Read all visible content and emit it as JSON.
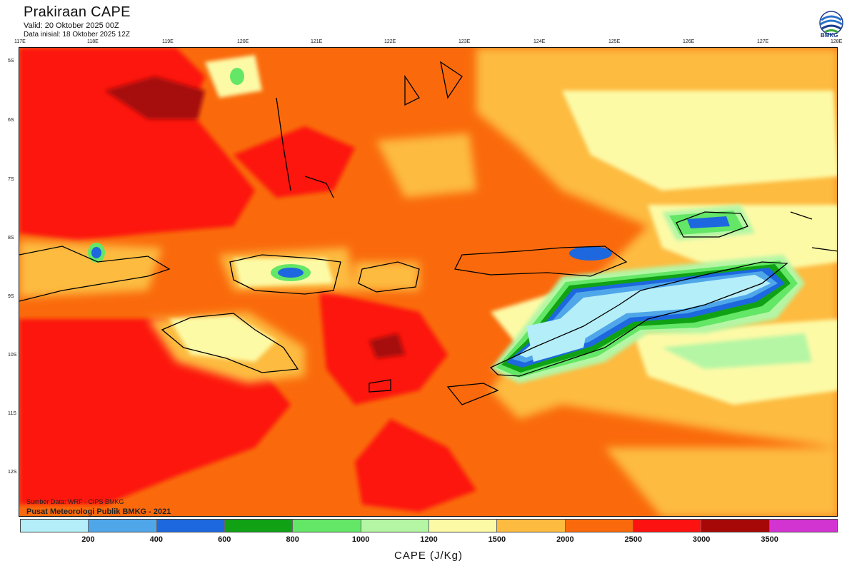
{
  "header": {
    "title": "Prakiraan CAPE",
    "valid": "Valid: 20 Oktober 2025 00Z",
    "initial": "Data inisial: 18 Oktober 2025 12Z",
    "logo_text": "BMKG"
  },
  "axes": {
    "lon_labels": [
      "117E",
      "118E",
      "119E",
      "120E",
      "121E",
      "122E",
      "123E",
      "124E",
      "125E",
      "126E",
      "127E",
      "128E"
    ],
    "lat_labels": [
      "5S",
      "6S",
      "7S",
      "8S",
      "9S",
      "10S",
      "11S",
      "12S"
    ]
  },
  "footer": {
    "source": "Sumber Data: WRF - CIPS BMKG",
    "credit": "Pusat Meteorologi Publik BMKG - 2021"
  },
  "colorbar": {
    "title": "CAPE (J/Kg)",
    "labels": [
      "200",
      "400",
      "600",
      "800",
      "1000",
      "1200",
      "1500",
      "2000",
      "2500",
      "3000",
      "3500"
    ],
    "colors": [
      "#b4eef8",
      "#4fa7ea",
      "#1d68de",
      "#10a214",
      "#64e666",
      "#b4f6a4",
      "#fdfaa6",
      "#fdbb40",
      "#fa6a0c",
      "#fc1210",
      "#a60808",
      "#d234d2"
    ]
  }
}
